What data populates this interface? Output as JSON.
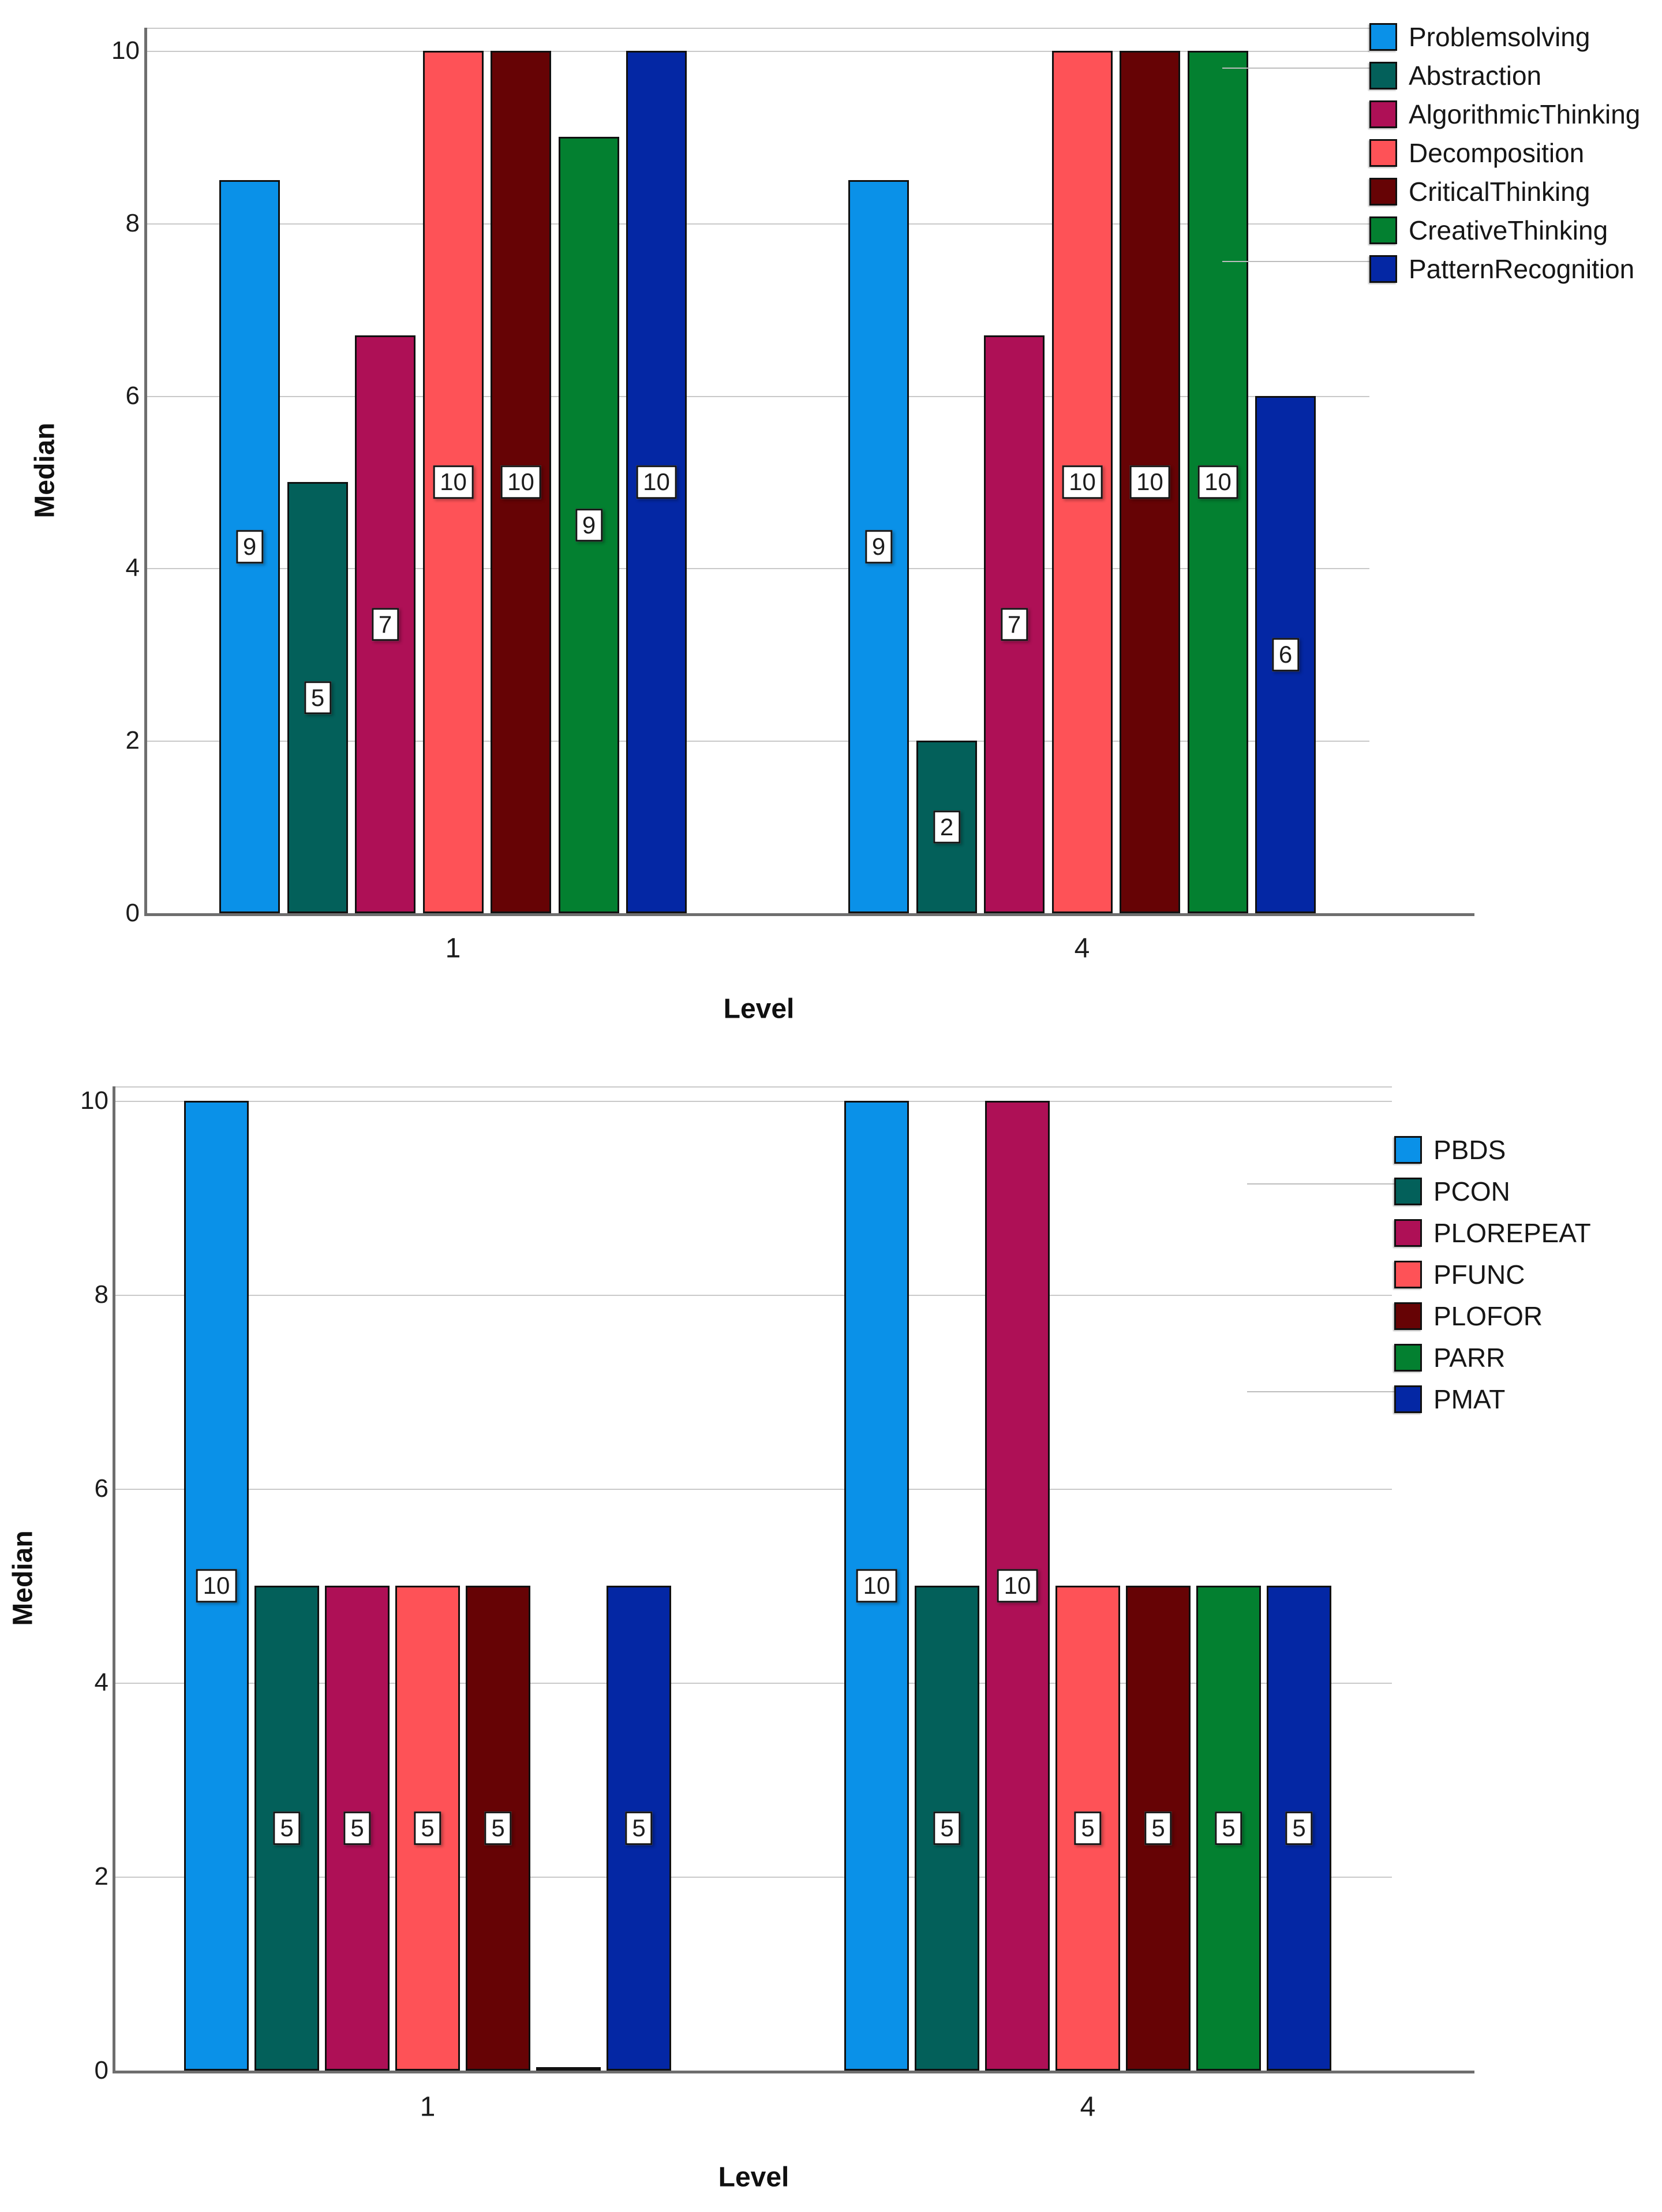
{
  "chart_data": [
    {
      "type": "bar",
      "title": "",
      "xlabel": "Level",
      "ylabel": "Median",
      "categories": [
        "1",
        "4"
      ],
      "yticks": [
        "0",
        "2",
        "4",
        "6",
        "8",
        "10"
      ],
      "ylim": [
        0,
        10
      ],
      "grid": true,
      "legend_position": "right",
      "series": [
        {
          "name": "Problemsolving",
          "color": "#0a91e8",
          "values": [
            8.5,
            8.5
          ],
          "bar_labels": [
            "9",
            "9"
          ]
        },
        {
          "name": "Abstraction",
          "color": "#03605a",
          "values": [
            5,
            2
          ],
          "bar_labels": [
            "5",
            "2"
          ]
        },
        {
          "name": "AlgorithmicThinking",
          "color": "#ae1056",
          "values": [
            6.7,
            6.7
          ],
          "bar_labels": [
            "7",
            "7"
          ]
        },
        {
          "name": "Decomposition",
          "color": "#fe5257",
          "values": [
            10,
            10
          ],
          "bar_labels": [
            "10",
            "10"
          ]
        },
        {
          "name": "CriticalThinking",
          "color": "#660305",
          "values": [
            10,
            10
          ],
          "bar_labels": [
            "10",
            "10"
          ]
        },
        {
          "name": "CreativeThinking",
          "color": "#038030",
          "values": [
            9,
            10
          ],
          "bar_labels": [
            "9",
            "10"
          ]
        },
        {
          "name": "PatternRecognition",
          "color": "#0427a4",
          "values": [
            10,
            6
          ],
          "bar_labels": [
            "10",
            "6"
          ]
        }
      ]
    },
    {
      "type": "bar",
      "title": "",
      "xlabel": "Level",
      "ylabel": "Median",
      "categories": [
        "1",
        "4"
      ],
      "yticks": [
        "0",
        "2",
        "4",
        "6",
        "8",
        "10"
      ],
      "ylim": [
        0,
        10
      ],
      "grid": true,
      "legend_position": "right",
      "series": [
        {
          "name": "PBDS",
          "color": "#0a91e8",
          "values": [
            10,
            10
          ],
          "bar_labels": [
            "10",
            "10"
          ]
        },
        {
          "name": "PCON",
          "color": "#03605a",
          "values": [
            5,
            5
          ],
          "bar_labels": [
            "5",
            "5"
          ]
        },
        {
          "name": "PLOREPEAT",
          "color": "#ae1056",
          "values": [
            5,
            10
          ],
          "bar_labels": [
            "5",
            "10"
          ]
        },
        {
          "name": "PFUNC",
          "color": "#fe5257",
          "values": [
            5,
            5
          ],
          "bar_labels": [
            "5",
            "5"
          ]
        },
        {
          "name": "PLOFOR",
          "color": "#660305",
          "values": [
            5,
            5
          ],
          "bar_labels": [
            "5",
            "5"
          ]
        },
        {
          "name": "PARR",
          "color": "#038030",
          "values": [
            0,
            5
          ],
          "bar_labels": [
            null,
            "5"
          ]
        },
        {
          "name": "PMAT",
          "color": "#0427a4",
          "values": [
            5,
            5
          ],
          "bar_labels": [
            "5",
            "5"
          ]
        }
      ]
    }
  ]
}
